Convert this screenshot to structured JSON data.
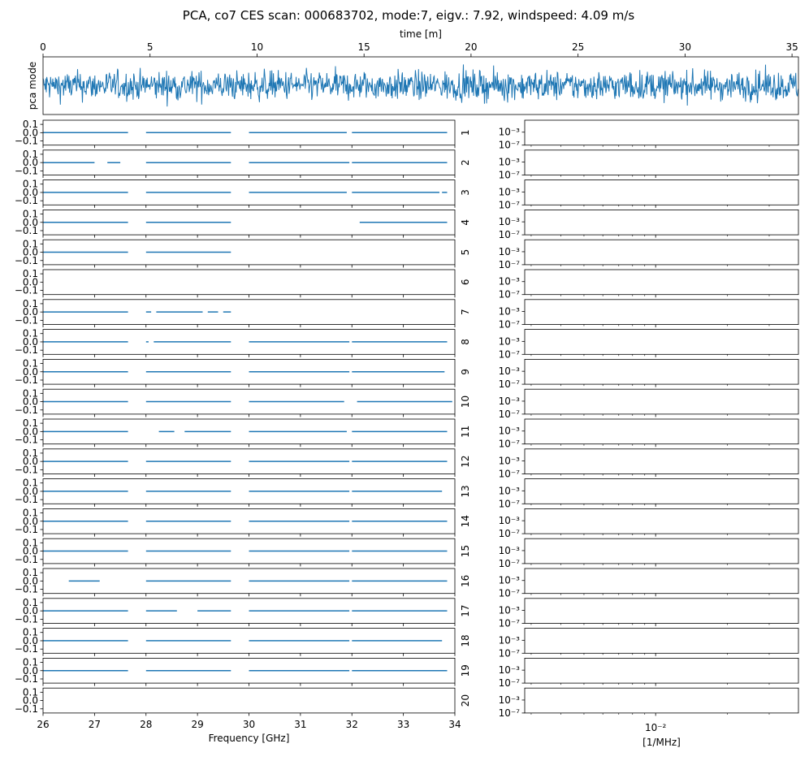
{
  "title": "PCA, co7 CES scan: 000683702, mode:7, eigv.: 7.92, windspeed: 4.09 m/s",
  "colors": {
    "line": "#1f77b4",
    "axes": "#000000",
    "background": "#ffffff"
  },
  "chart_data": [
    {
      "id": "timestream",
      "type": "line",
      "xlabel": "time [m]",
      "ylabel": "pca mode",
      "xlim": [
        0,
        35.3
      ],
      "xticks": [
        0,
        5,
        10,
        15,
        20,
        25,
        30,
        35
      ],
      "xtick_labels": [
        "0",
        "5",
        "10",
        "15",
        "20",
        "25",
        "30",
        "35"
      ],
      "x_axis_position": "top",
      "yticks_shown": false,
      "description_of_series": "noise-like PCA mode timestream across full scan"
    },
    {
      "id": "feed-panels",
      "type": "line",
      "xlabel": "Frequency [GHz]",
      "xlim": [
        26,
        34
      ],
      "xticks": [
        26,
        27,
        28,
        29,
        30,
        31,
        32,
        33,
        34
      ],
      "xtick_labels": [
        "26",
        "27",
        "28",
        "29",
        "30",
        "31",
        "32",
        "33",
        "34"
      ],
      "ylim": [
        -0.15,
        0.15
      ],
      "yticks": [
        0.1,
        0.0,
        -0.1
      ],
      "ytick_labels": [
        "0.1",
        "0.0",
        "−0.1"
      ],
      "panels": [
        {
          "feed": "1",
          "segments": [
            [
              26.0,
              27.65
            ],
            [
              28.0,
              29.65
            ],
            [
              30.0,
              31.9
            ],
            [
              32.0,
              33.85
            ]
          ]
        },
        {
          "feed": "2",
          "segments": [
            [
              26.0,
              27.0
            ],
            [
              27.25,
              27.5
            ],
            [
              28.0,
              29.65
            ],
            [
              30.0,
              31.95
            ],
            [
              32.0,
              33.85
            ]
          ]
        },
        {
          "feed": "3",
          "segments": [
            [
              26.0,
              27.65
            ],
            [
              28.0,
              29.65
            ],
            [
              30.0,
              31.9
            ],
            [
              32.0,
              33.7
            ],
            [
              33.75,
              33.85
            ]
          ]
        },
        {
          "feed": "4",
          "segments": [
            [
              26.0,
              27.65
            ],
            [
              28.0,
              29.65
            ],
            [
              32.15,
              33.85
            ]
          ]
        },
        {
          "feed": "5",
          "segments": [
            [
              26.0,
              27.65
            ],
            [
              28.0,
              29.65
            ]
          ]
        },
        {
          "feed": "6",
          "segments": []
        },
        {
          "feed": "7",
          "segments": [
            [
              26.0,
              27.65
            ],
            [
              28.0,
              28.1
            ],
            [
              28.2,
              29.1
            ],
            [
              29.2,
              29.4
            ],
            [
              29.5,
              29.65
            ]
          ]
        },
        {
          "feed": "8",
          "segments": [
            [
              26.0,
              27.65
            ],
            [
              28.0,
              28.05
            ],
            [
              28.15,
              29.65
            ],
            [
              30.0,
              31.95
            ],
            [
              32.0,
              33.85
            ]
          ]
        },
        {
          "feed": "9",
          "segments": [
            [
              26.0,
              27.65
            ],
            [
              28.0,
              29.65
            ],
            [
              30.0,
              31.95
            ],
            [
              32.0,
              33.8
            ]
          ]
        },
        {
          "feed": "10",
          "segments": [
            [
              26.0,
              27.65
            ],
            [
              28.0,
              29.65
            ],
            [
              30.0,
              31.85
            ],
            [
              32.1,
              33.95
            ]
          ]
        },
        {
          "feed": "11",
          "segments": [
            [
              26.0,
              27.65
            ],
            [
              28.25,
              28.55
            ],
            [
              28.75,
              29.65
            ],
            [
              30.0,
              31.9
            ],
            [
              32.0,
              33.85
            ]
          ]
        },
        {
          "feed": "12",
          "segments": [
            [
              26.0,
              27.65
            ],
            [
              28.0,
              29.65
            ],
            [
              30.0,
              31.95
            ],
            [
              32.0,
              33.85
            ]
          ]
        },
        {
          "feed": "13",
          "segments": [
            [
              26.0,
              27.65
            ],
            [
              28.0,
              29.65
            ],
            [
              30.0,
              31.95
            ],
            [
              32.0,
              33.75
            ]
          ]
        },
        {
          "feed": "14",
          "segments": [
            [
              26.0,
              27.65
            ],
            [
              28.0,
              29.65
            ],
            [
              30.0,
              31.95
            ],
            [
              32.0,
              33.85
            ]
          ]
        },
        {
          "feed": "15",
          "segments": [
            [
              26.0,
              27.65
            ],
            [
              28.0,
              29.65
            ],
            [
              30.0,
              31.95
            ],
            [
              32.0,
              33.85
            ]
          ]
        },
        {
          "feed": "16",
          "segments": [
            [
              26.5,
              27.1
            ],
            [
              28.0,
              29.65
            ],
            [
              30.0,
              31.95
            ],
            [
              32.0,
              33.85
            ]
          ]
        },
        {
          "feed": "17",
          "segments": [
            [
              26.0,
              27.65
            ],
            [
              28.0,
              28.6
            ],
            [
              29.0,
              29.65
            ],
            [
              30.0,
              31.95
            ],
            [
              32.0,
              33.85
            ]
          ]
        },
        {
          "feed": "18",
          "segments": [
            [
              26.0,
              27.65
            ],
            [
              28.0,
              29.65
            ],
            [
              30.0,
              31.95
            ],
            [
              32.0,
              33.75
            ]
          ]
        },
        {
          "feed": "19",
          "segments": [
            [
              26.0,
              27.65
            ],
            [
              28.0,
              29.65
            ],
            [
              30.0,
              31.95
            ],
            [
              32.0,
              33.85
            ]
          ]
        },
        {
          "feed": "20",
          "segments": []
        }
      ]
    },
    {
      "id": "spectrum-panels",
      "type": "line",
      "xlabel": "[1/MHz]",
      "xscale": "log",
      "yscale": "log",
      "xtick_major_label": "10⁻²",
      "ytick_labels": [
        "10⁻³",
        "10⁻⁷"
      ],
      "panel_count": 20,
      "series_shown": false
    }
  ]
}
